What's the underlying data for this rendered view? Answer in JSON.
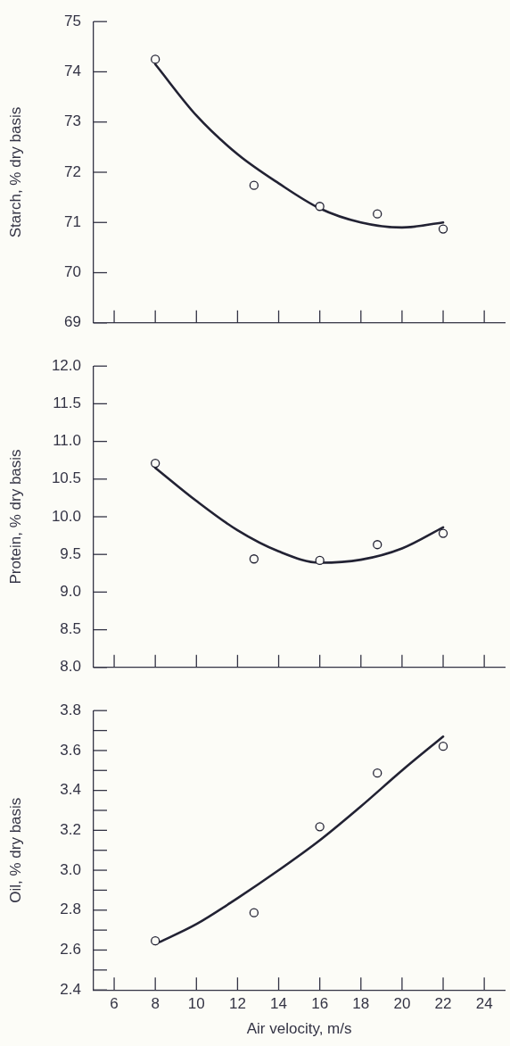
{
  "chart_data": [
    {
      "type": "scatter",
      "ylabel": "Starch, % dry basis",
      "xlim": [
        5,
        25
      ],
      "xticks": [
        {
          "value": 6,
          "label": null
        },
        {
          "value": 8,
          "label": null
        },
        {
          "value": 10,
          "label": null
        },
        {
          "value": 12,
          "label": null
        },
        {
          "value": 14,
          "label": null
        },
        {
          "value": 16,
          "label": null
        },
        {
          "value": 18,
          "label": null
        },
        {
          "value": 20,
          "label": null
        },
        {
          "value": 22,
          "label": null
        },
        {
          "value": 24,
          "label": null
        }
      ],
      "ylim": [
        69,
        75
      ],
      "yticks": [
        69,
        70,
        71,
        72,
        73,
        74,
        75
      ],
      "tick_labels": "y",
      "series": [
        {
          "type": "scatter",
          "color": "#222233",
          "marker": "circle",
          "x": [
            8,
            12.8,
            16,
            18.8,
            22
          ],
          "values": [
            74.25,
            71.74,
            71.32,
            71.17,
            70.87
          ]
        },
        {
          "type": "line",
          "color": "#222233",
          "marker": "none",
          "x": [
            8,
            10,
            12,
            14,
            16,
            18,
            20,
            22
          ],
          "values": [
            74.15,
            73.13,
            72.36,
            71.78,
            71.28,
            71.0,
            70.9,
            71.0
          ]
        }
      ]
    },
    {
      "type": "scatter",
      "ylabel": "Protein, % dry basis",
      "xlim": [
        5,
        25
      ],
      "xticks": [
        {
          "value": 6,
          "label": null
        },
        {
          "value": 8,
          "label": null
        },
        {
          "value": 10,
          "label": null
        },
        {
          "value": 12,
          "label": null
        },
        {
          "value": 14,
          "label": null
        },
        {
          "value": 16,
          "label": null
        },
        {
          "value": 18,
          "label": null
        },
        {
          "value": 20,
          "label": null
        },
        {
          "value": 22,
          "label": null
        },
        {
          "value": 24,
          "label": null
        }
      ],
      "ylim": [
        8,
        12
      ],
      "yticks": [
        {
          "value": 8,
          "label": "8.0"
        },
        {
          "value": 8.5,
          "label": "8.5"
        },
        {
          "value": 9,
          "label": "9.0"
        },
        {
          "value": 9.5,
          "label": "9.5"
        },
        {
          "value": 10,
          "label": "10.0"
        },
        {
          "value": 10.5,
          "label": "10.5"
        },
        {
          "value": 11,
          "label": "11.0"
        },
        {
          "value": 11.5,
          "label": "11.5"
        },
        {
          "value": 12,
          "label": "12.0"
        }
      ],
      "tick_labels": "y",
      "series": [
        {
          "type": "scatter",
          "color": "#222233",
          "marker": "circle",
          "x": [
            8,
            12.8,
            16,
            18.8,
            22
          ],
          "values": [
            10.71,
            9.44,
            9.42,
            9.63,
            9.78
          ]
        },
        {
          "type": "line",
          "color": "#222233",
          "marker": "none",
          "x": [
            8,
            10,
            12,
            14,
            16,
            18,
            20,
            22
          ],
          "values": [
            10.65,
            10.21,
            9.82,
            9.54,
            9.39,
            9.43,
            9.58,
            9.86
          ]
        }
      ]
    },
    {
      "type": "scatter",
      "xlabel": "Air velocity, m/s",
      "ylabel": "Oil, % dry basis",
      "xlim": [
        5,
        25
      ],
      "xticks": [
        6,
        8,
        10,
        12,
        14,
        16,
        18,
        20,
        22,
        24
      ],
      "ylim": [
        2.4,
        3.8
      ],
      "yticks": [
        {
          "value": 2.4,
          "label": "2.4"
        },
        {
          "value": 2.5,
          "label": null
        },
        {
          "value": 2.6,
          "label": "2.6"
        },
        {
          "value": 2.7,
          "label": null
        },
        {
          "value": 2.8,
          "label": "2.8"
        },
        {
          "value": 2.9,
          "label": null
        },
        {
          "value": 3.0,
          "label": "3.0"
        },
        {
          "value": 3.1,
          "label": null
        },
        {
          "value": 3.2,
          "label": "3.2"
        },
        {
          "value": 3.3,
          "label": null
        },
        {
          "value": 3.4,
          "label": "3.4"
        },
        {
          "value": 3.5,
          "label": null
        },
        {
          "value": 3.6,
          "label": "3.6"
        },
        {
          "value": 3.7,
          "label": null
        },
        {
          "value": 3.8,
          "label": "3.8"
        }
      ],
      "series": [
        {
          "type": "scatter",
          "color": "#222233",
          "marker": "circle",
          "x": [
            8,
            12.8,
            16,
            18.8,
            22
          ],
          "values": [
            2.646,
            2.787,
            3.218,
            3.487,
            3.621
          ]
        },
        {
          "type": "line",
          "color": "#222233",
          "marker": "none",
          "x": [
            8,
            10,
            12,
            14,
            16,
            18,
            20,
            22
          ],
          "values": [
            2.63,
            2.73,
            2.86,
            3.0,
            3.15,
            3.32,
            3.5,
            3.67
          ]
        }
      ]
    }
  ]
}
